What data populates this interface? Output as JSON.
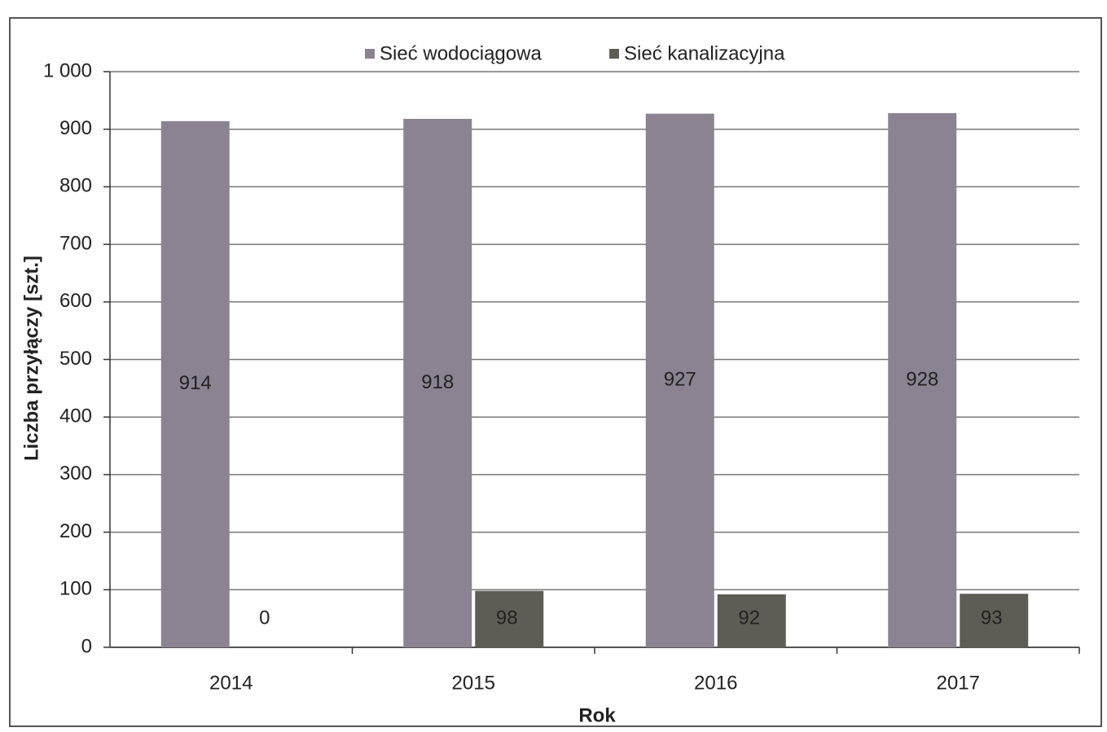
{
  "chart_data": {
    "type": "bar",
    "categories": [
      "2014",
      "2015",
      "2016",
      "2017"
    ],
    "series": [
      {
        "name": "Sieć wodociągowa",
        "color": "#8b8292",
        "values": [
          914,
          918,
          927,
          928
        ]
      },
      {
        "name": "Sieć kanalizacyjna",
        "color": "#5e5d55",
        "values": [
          0,
          98,
          92,
          93
        ]
      }
    ],
    "ylim": [
      0,
      1000
    ],
    "yticks": [
      0,
      100,
      200,
      300,
      400,
      500,
      600,
      700,
      800,
      900,
      {
        "value": 1000,
        "label": "1 000"
      }
    ],
    "y_label": "Liczba przyłączy [szt.]",
    "x_label": "Rok",
    "grid": true,
    "legend": "top"
  }
}
